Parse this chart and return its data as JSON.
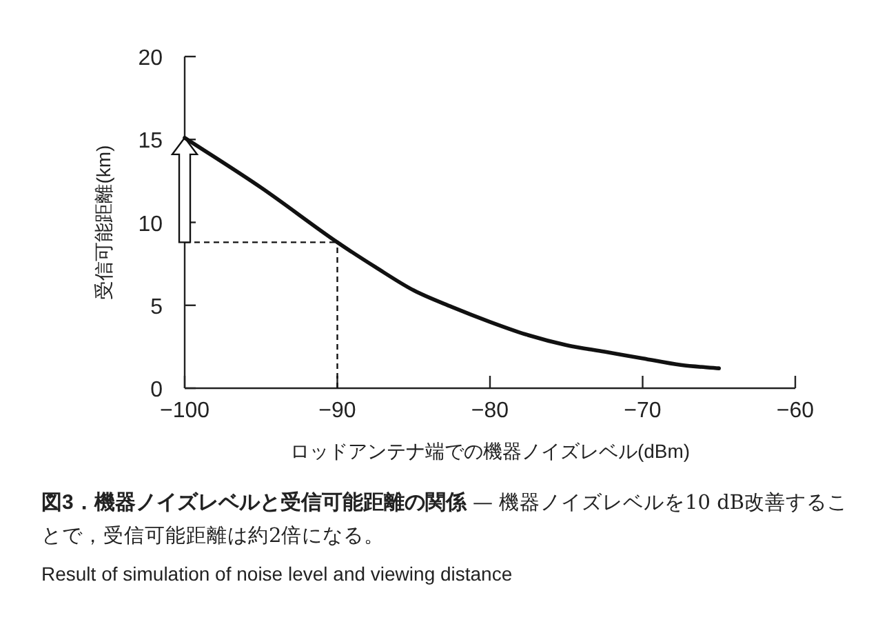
{
  "chart_data": {
    "type": "line",
    "title": "図3．機器ノイズレベルと受信可能距離の関係",
    "subtitle": "— 機器ノイズレベルを10 dB改善することで，受信可能距離は約2倍になる。",
    "xlabel": "ロッドアンテナ端での機器ノイズレベル(dBm)",
    "ylabel": "受信可能距離(km)",
    "annotations": [
      "Result of simulation of noise level and viewing distance"
    ],
    "x": [
      -100,
      -95,
      -90,
      -87.5,
      -85,
      -82.5,
      -80,
      -77.5,
      -75,
      -72.5,
      -70,
      -67.5,
      -65
    ],
    "series": [
      {
        "color": "#111111",
        "values": [
          15.1,
          12.1,
          8.8,
          7.3,
          5.9,
          4.9,
          4.0,
          3.2,
          2.6,
          2.2,
          1.8,
          1.4,
          1.2
        ]
      }
    ],
    "xlim": [
      -100,
      -60
    ],
    "xticks": [
      {
        "value": -100,
        "label": "−100"
      },
      {
        "value": -90,
        "label": "−90"
      },
      {
        "value": -80,
        "label": "−80"
      },
      {
        "value": -70,
        "label": "−70"
      },
      {
        "value": -60,
        "label": "−60"
      }
    ],
    "ylim": [
      0,
      20
    ],
    "yticks": [
      0,
      5,
      10,
      15,
      20
    ],
    "ref_lines": [
      {
        "axis": "x",
        "value": -90,
        "color": "#111111",
        "line_style": "dashed"
      },
      {
        "axis": "y",
        "value": 8.8,
        "color": "#111111",
        "line_style": "dashed"
      }
    ],
    "grid": false,
    "marker": "none",
    "line_style": "solid"
  }
}
